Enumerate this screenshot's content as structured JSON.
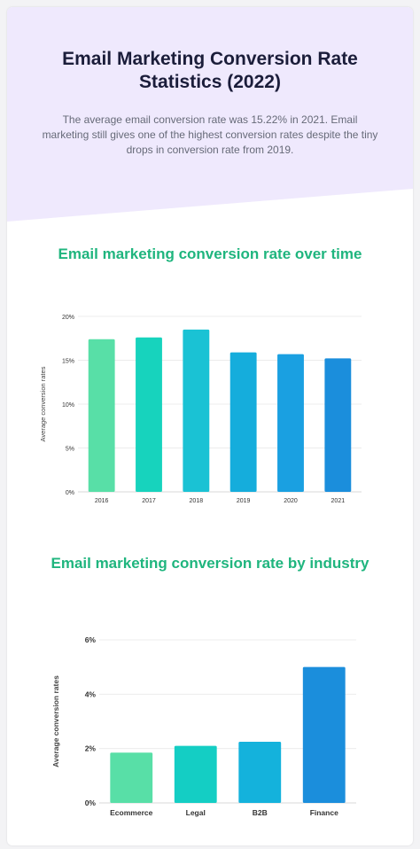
{
  "header": {
    "title": "Email Marketing Conversion Rate Statistics (2022)",
    "subtitle": "The average email conversion rate was 15.22% in 2021. Email marketing still gives one of the highest conversion rates despite the tiny drops in conversion rate from 2019.",
    "background_color": "#efe9fd"
  },
  "chart_data": [
    {
      "type": "bar",
      "title": "Email marketing conversion rate over time",
      "xlabel": "",
      "ylabel": "Average conversion rates",
      "categories": [
        "2016",
        "2017",
        "2018",
        "2019",
        "2020",
        "2021"
      ],
      "values": [
        17.4,
        17.6,
        18.5,
        15.9,
        15.7,
        15.22
      ],
      "ylim": [
        0,
        20
      ],
      "yticks": [
        "0%",
        "5%",
        "10%",
        "15%",
        "20%"
      ],
      "grid": true,
      "colors": [
        "#58dfa7",
        "#17d3bd",
        "#1ac2d4",
        "#15addc",
        "#1aa0e1",
        "#1b8edc"
      ]
    },
    {
      "type": "bar",
      "title": "Email marketing conversion rate by industry",
      "xlabel": "",
      "ylabel": "Average conversion rates",
      "categories": [
        "Ecommerce",
        "Legal",
        "B2B",
        "Finance"
      ],
      "values": [
        1.85,
        2.1,
        2.25,
        5.0
      ],
      "ylim": [
        0,
        6
      ],
      "yticks": [
        "0%",
        "2%",
        "4%",
        "6%"
      ],
      "grid": true,
      "colors": [
        "#58dfa7",
        "#14cec4",
        "#14b2dc",
        "#1b8edc"
      ]
    }
  ]
}
